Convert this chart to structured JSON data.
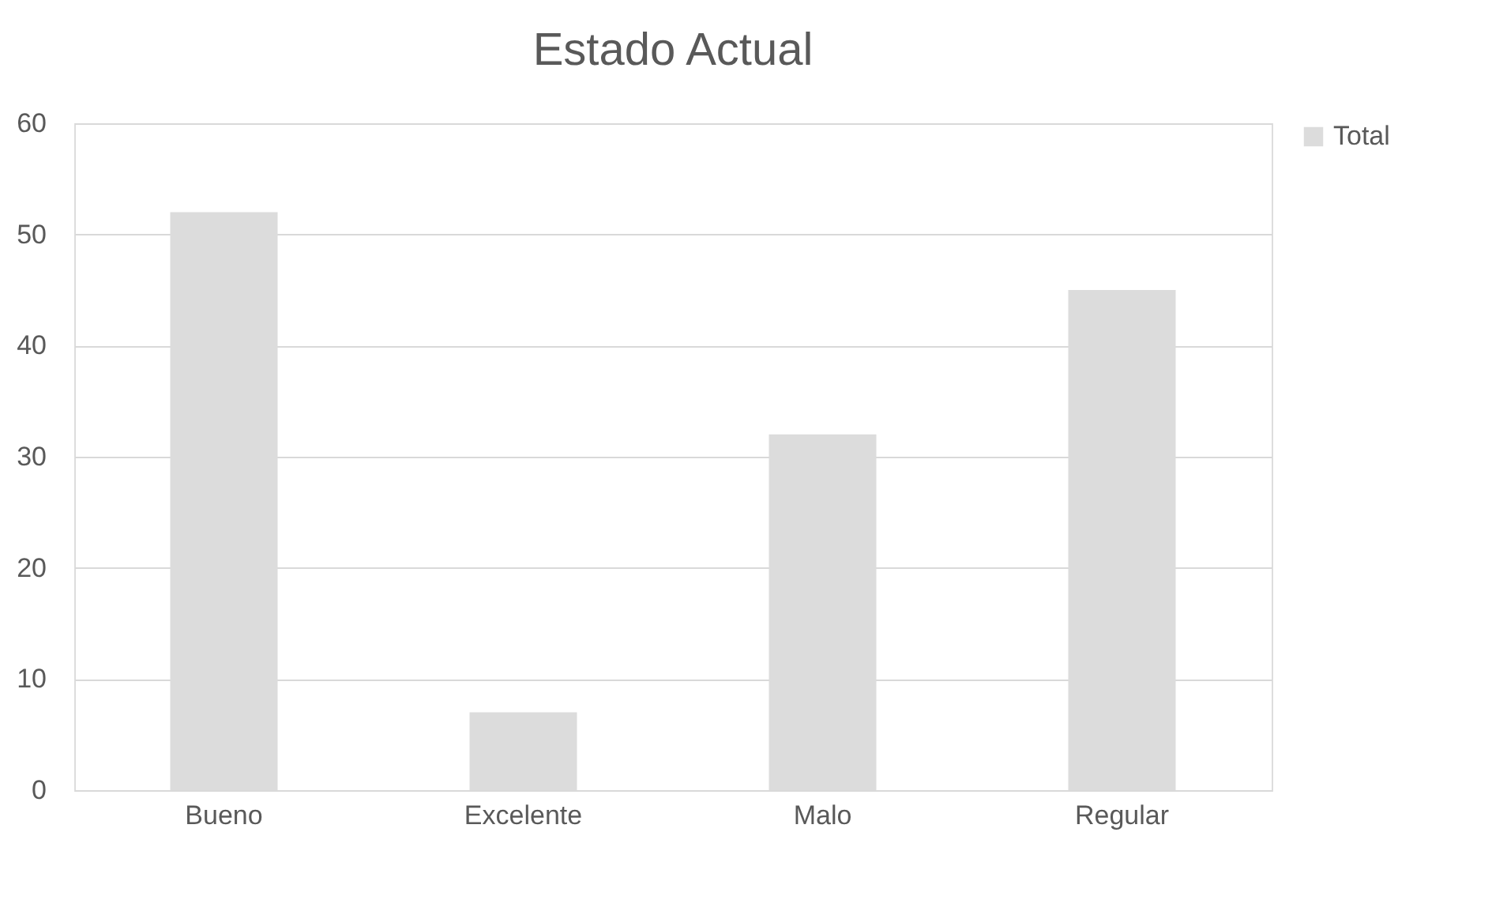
{
  "chart_data": {
    "type": "bar",
    "title": "Estado Actual",
    "categories": [
      "Bueno",
      "Excelente",
      "Malo",
      "Regular"
    ],
    "series": [
      {
        "name": "Total",
        "color": "#dcdcdc",
        "values": [
          52,
          7,
          32,
          45
        ]
      }
    ],
    "ylim": [
      0,
      60
    ],
    "yticks": [
      0,
      10,
      20,
      30,
      40,
      50,
      60
    ],
    "grid": "y",
    "legend": "right"
  }
}
